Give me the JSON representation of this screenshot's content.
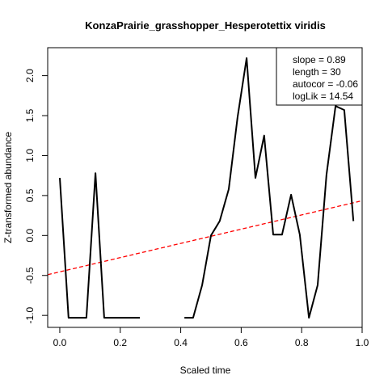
{
  "chart_data": {
    "type": "line",
    "title": "KonzaPrairie_grasshopper_Hesperotettix viridis",
    "xlabel": "Scaled time",
    "ylabel": "Z-transformed abundance",
    "xlim": [
      -0.04,
      1.0
    ],
    "ylim": [
      -1.15,
      2.35
    ],
    "x_ticks": [
      0.0,
      0.2,
      0.4,
      0.6,
      0.8,
      1.0
    ],
    "x_tick_labels": [
      "0.0",
      "0.2",
      "0.4",
      "0.6",
      "0.8",
      "1.0"
    ],
    "y_ticks": [
      -1.0,
      -0.5,
      0.0,
      0.5,
      1.0,
      1.5,
      2.0
    ],
    "y_tick_labels": [
      "-1.0",
      "-0.5",
      "0.0",
      "0.5",
      "1.0",
      "1.5",
      "2.0"
    ],
    "grid": false,
    "series": [
      {
        "color": "#000000",
        "style": "solid",
        "points": [
          [
            0.0,
            0.72
          ],
          [
            0.029,
            -1.03
          ],
          [
            0.059,
            -1.03
          ],
          [
            0.088,
            -1.03
          ],
          [
            0.118,
            0.78
          ],
          [
            0.147,
            -1.03
          ],
          [
            0.176,
            -1.03
          ],
          [
            0.206,
            -1.03
          ],
          [
            0.235,
            -1.03
          ],
          [
            0.265,
            -1.03
          ],
          [
            0.294,
            null
          ],
          [
            0.324,
            null
          ],
          [
            0.353,
            null
          ],
          [
            0.382,
            null
          ],
          [
            0.412,
            -1.03
          ],
          [
            0.441,
            -1.03
          ],
          [
            0.471,
            -0.62
          ],
          [
            0.5,
            0.0
          ],
          [
            0.529,
            0.18
          ],
          [
            0.559,
            0.58
          ],
          [
            0.588,
            1.48
          ],
          [
            0.618,
            2.22
          ],
          [
            0.647,
            0.72
          ],
          [
            0.676,
            1.25
          ],
          [
            0.706,
            0.01
          ],
          [
            0.735,
            0.01
          ],
          [
            0.765,
            0.51
          ],
          [
            0.794,
            0.01
          ],
          [
            0.824,
            -1.03
          ],
          [
            0.853,
            -0.62
          ],
          [
            0.882,
            0.76
          ],
          [
            0.912,
            1.62
          ],
          [
            0.941,
            1.57
          ],
          [
            0.971,
            0.18
          ]
        ]
      }
    ],
    "trend_line": {
      "color": "#ff0000",
      "style": "dashed",
      "intercept": -0.455,
      "slope": 0.89
    },
    "legend": {
      "position": "top-right",
      "entries": [
        "slope = 0.89",
        "length = 30",
        "autocor = -0.06",
        "logLik = 14.54"
      ]
    }
  }
}
